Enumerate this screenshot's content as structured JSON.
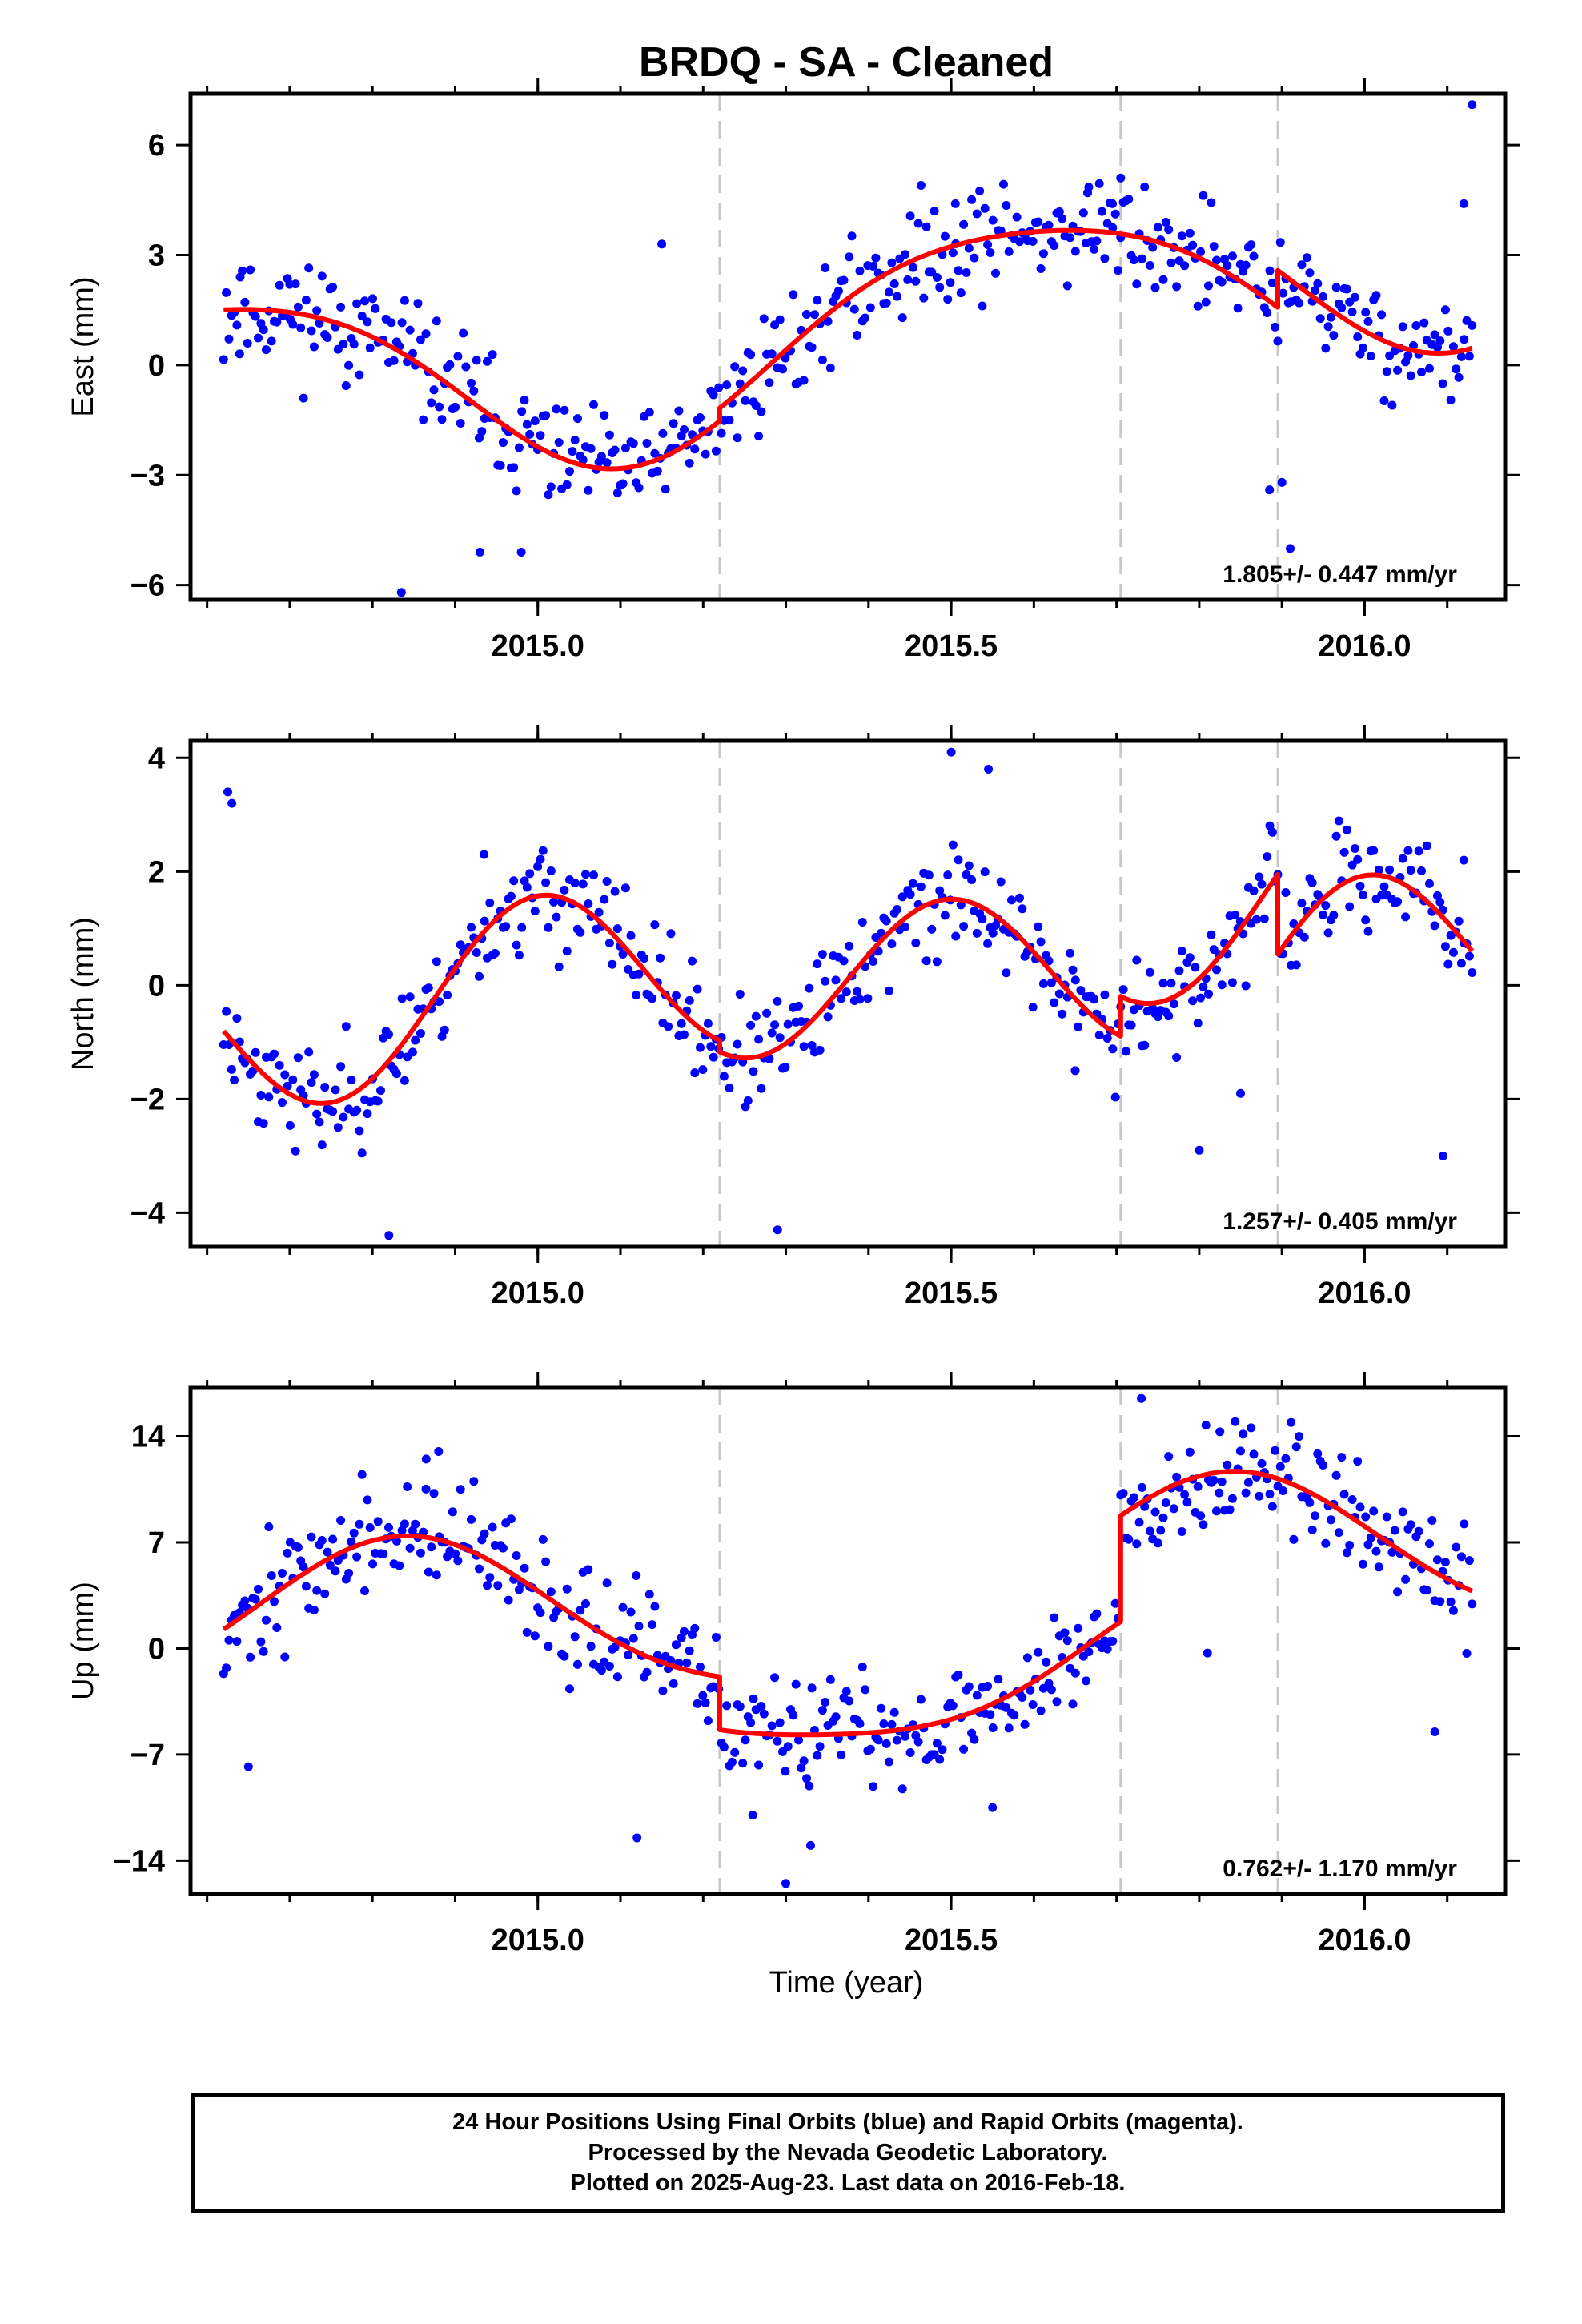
{
  "title": "BRDQ  - SA - Cleaned",
  "xlabel": "Time (year)",
  "caption": {
    "line1": "24 Hour Positions Using Final Orbits (blue) and Rapid Orbits (magenta).",
    "line2": "Processed by the Nevada Geodetic Laboratory.",
    "line3": "Plotted on 2025-Aug-23. Last data on 2016-Feb-18."
  },
  "colors": {
    "data": "#0000ff",
    "model": "#ff0000",
    "steps": "#c8c8c8",
    "axes": "#000000"
  },
  "chart_data": [
    {
      "type": "scatter",
      "component": "east",
      "ylabel": "East (mm)",
      "rate_text": "1.805+/- 0.447 mm/yr",
      "xlim": [
        2014.58,
        2016.17
      ],
      "ylim": [
        -6.4,
        7.4
      ],
      "xticks": [
        2015.0,
        2015.5,
        2016.0
      ],
      "xtick_labels": [
        "2015.0",
        "2015.5",
        "2016.0"
      ],
      "yticks": [
        -6,
        -3,
        0,
        3,
        6
      ],
      "ytick_labels": [
        "−6",
        "−3",
        "0",
        "3",
        "6"
      ],
      "step_epochs": [
        2015.22,
        2015.705,
        2015.895
      ],
      "model": {
        "offset": 0.0,
        "rate": 1.805,
        "seasonal": [
          {
            "period": 1.0,
            "amp": 2.6,
            "peak": 2015.6
          },
          {
            "period": 0.5,
            "amp": 0.4,
            "peak": 2015.35
          }
        ],
        "steps": [
          {
            "epoch": 2015.22,
            "size": 0.35
          },
          {
            "epoch": 2015.705,
            "size": 0.0
          },
          {
            "epoch": 2015.895,
            "size": 1.0
          }
        ]
      },
      "samples": {
        "start": 2014.62,
        "end": 2016.13,
        "count": 470,
        "scatter": 1.05,
        "seed": 11
      },
      "outliers": [
        {
          "x": 2014.835,
          "y": -6.2
        },
        {
          "x": 2014.93,
          "y": -5.1
        },
        {
          "x": 2014.98,
          "y": -5.1
        },
        {
          "x": 2015.15,
          "y": 3.3
        },
        {
          "x": 2015.505,
          "y": 4.4
        },
        {
          "x": 2015.665,
          "y": 4.7
        },
        {
          "x": 2015.705,
          "y": 5.1
        },
        {
          "x": 2015.695,
          "y": 4.4
        },
        {
          "x": 2015.885,
          "y": -3.4
        },
        {
          "x": 2015.91,
          "y": -5.0
        },
        {
          "x": 2015.9,
          "y": -3.2
        },
        {
          "x": 2016.13,
          "y": 7.1
        },
        {
          "x": 2016.12,
          "y": 4.4
        },
        {
          "x": 2014.7,
          "y": 2.2
        },
        {
          "x": 2014.64,
          "y": 2.4
        }
      ]
    },
    {
      "type": "scatter",
      "component": "north",
      "ylabel": "North (mm)",
      "rate_text": "1.257+/- 0.405 mm/yr",
      "xlim": [
        2014.58,
        2016.17
      ],
      "ylim": [
        -4.6,
        4.3
      ],
      "xticks": [
        2015.0,
        2015.5,
        2016.0
      ],
      "xtick_labels": [
        "2015.0",
        "2015.5",
        "2016.0"
      ],
      "yticks": [
        -4,
        -2,
        0,
        2,
        4
      ],
      "ytick_labels": [
        "−4",
        "−2",
        "0",
        "2",
        "4"
      ],
      "step_epochs": [
        2015.22,
        2015.705,
        2015.895
      ],
      "model": {
        "offset": -0.12,
        "rate": 1.257,
        "seasonal": [
          {
            "period": 1.0,
            "amp": 0.3,
            "peak": 2015.1
          },
          {
            "period": 0.5,
            "amp": 1.45,
            "peak": 2015.0
          }
        ],
        "steps": [
          {
            "epoch": 2015.22,
            "size": -0.2
          },
          {
            "epoch": 2015.705,
            "size": 0.7
          },
          {
            "epoch": 2015.895,
            "size": -1.4
          }
        ]
      },
      "samples": {
        "start": 2014.62,
        "end": 2016.13,
        "count": 470,
        "scatter": 0.65,
        "seed": 23
      },
      "outliers": [
        {
          "x": 2014.625,
          "y": 3.4
        },
        {
          "x": 2014.63,
          "y": 3.2
        },
        {
          "x": 2014.82,
          "y": -4.4
        },
        {
          "x": 2015.29,
          "y": -4.3
        },
        {
          "x": 2015.5,
          "y": 4.1
        },
        {
          "x": 2015.545,
          "y": 3.8
        },
        {
          "x": 2015.8,
          "y": -2.9
        },
        {
          "x": 2016.095,
          "y": -3.0
        },
        {
          "x": 2016.12,
          "y": 2.2
        },
        {
          "x": 2014.935,
          "y": 2.3
        },
        {
          "x": 2015.65,
          "y": -1.5
        },
        {
          "x": 2015.85,
          "y": -1.9
        }
      ]
    },
    {
      "type": "scatter",
      "component": "up",
      "ylabel": "Up (mm)",
      "rate_text": "0.762+/- 1.170 mm/yr",
      "xlim": [
        2014.58,
        2016.17
      ],
      "ylim": [
        -16.2,
        17.2
      ],
      "xticks": [
        2015.0,
        2015.5,
        2016.0
      ],
      "xtick_labels": [
        "2015.0",
        "2015.5",
        "2016.0"
      ],
      "yticks": [
        -14,
        -7,
        0,
        7,
        14
      ],
      "ytick_labels": [
        "−14",
        "−7",
        "0",
        "7",
        "14"
      ],
      "step_epochs": [
        2015.22,
        2015.705,
        2015.895
      ],
      "model": {
        "offset": 1.55,
        "rate": 0.762,
        "seasonal": [
          {
            "period": 1.0,
            "amp": 5.0,
            "peak": 2014.84
          },
          {
            "period": 0.5,
            "amp": 1.0,
            "peak": 2014.84
          }
        ],
        "steps": [
          {
            "epoch": 2015.22,
            "size": -3.5
          },
          {
            "epoch": 2015.705,
            "size": 7.0
          },
          {
            "epoch": 2015.895,
            "size": 0.0
          }
        ]
      },
      "samples": {
        "start": 2014.62,
        "end": 2016.13,
        "count": 470,
        "scatter": 2.6,
        "seed": 37
      },
      "outliers": [
        {
          "x": 2015.73,
          "y": 16.5
        },
        {
          "x": 2014.88,
          "y": 13.0
        },
        {
          "x": 2014.865,
          "y": 12.5
        },
        {
          "x": 2015.3,
          "y": -15.5
        },
        {
          "x": 2015.33,
          "y": -13.0
        },
        {
          "x": 2015.825,
          "y": 14.3
        },
        {
          "x": 2015.81,
          "y": -0.3
        },
        {
          "x": 2014.65,
          "y": -7.8
        },
        {
          "x": 2015.12,
          "y": -12.5
        },
        {
          "x": 2015.26,
          "y": -11.0
        },
        {
          "x": 2015.55,
          "y": -10.5
        },
        {
          "x": 2016.085,
          "y": -5.5
        }
      ]
    }
  ]
}
